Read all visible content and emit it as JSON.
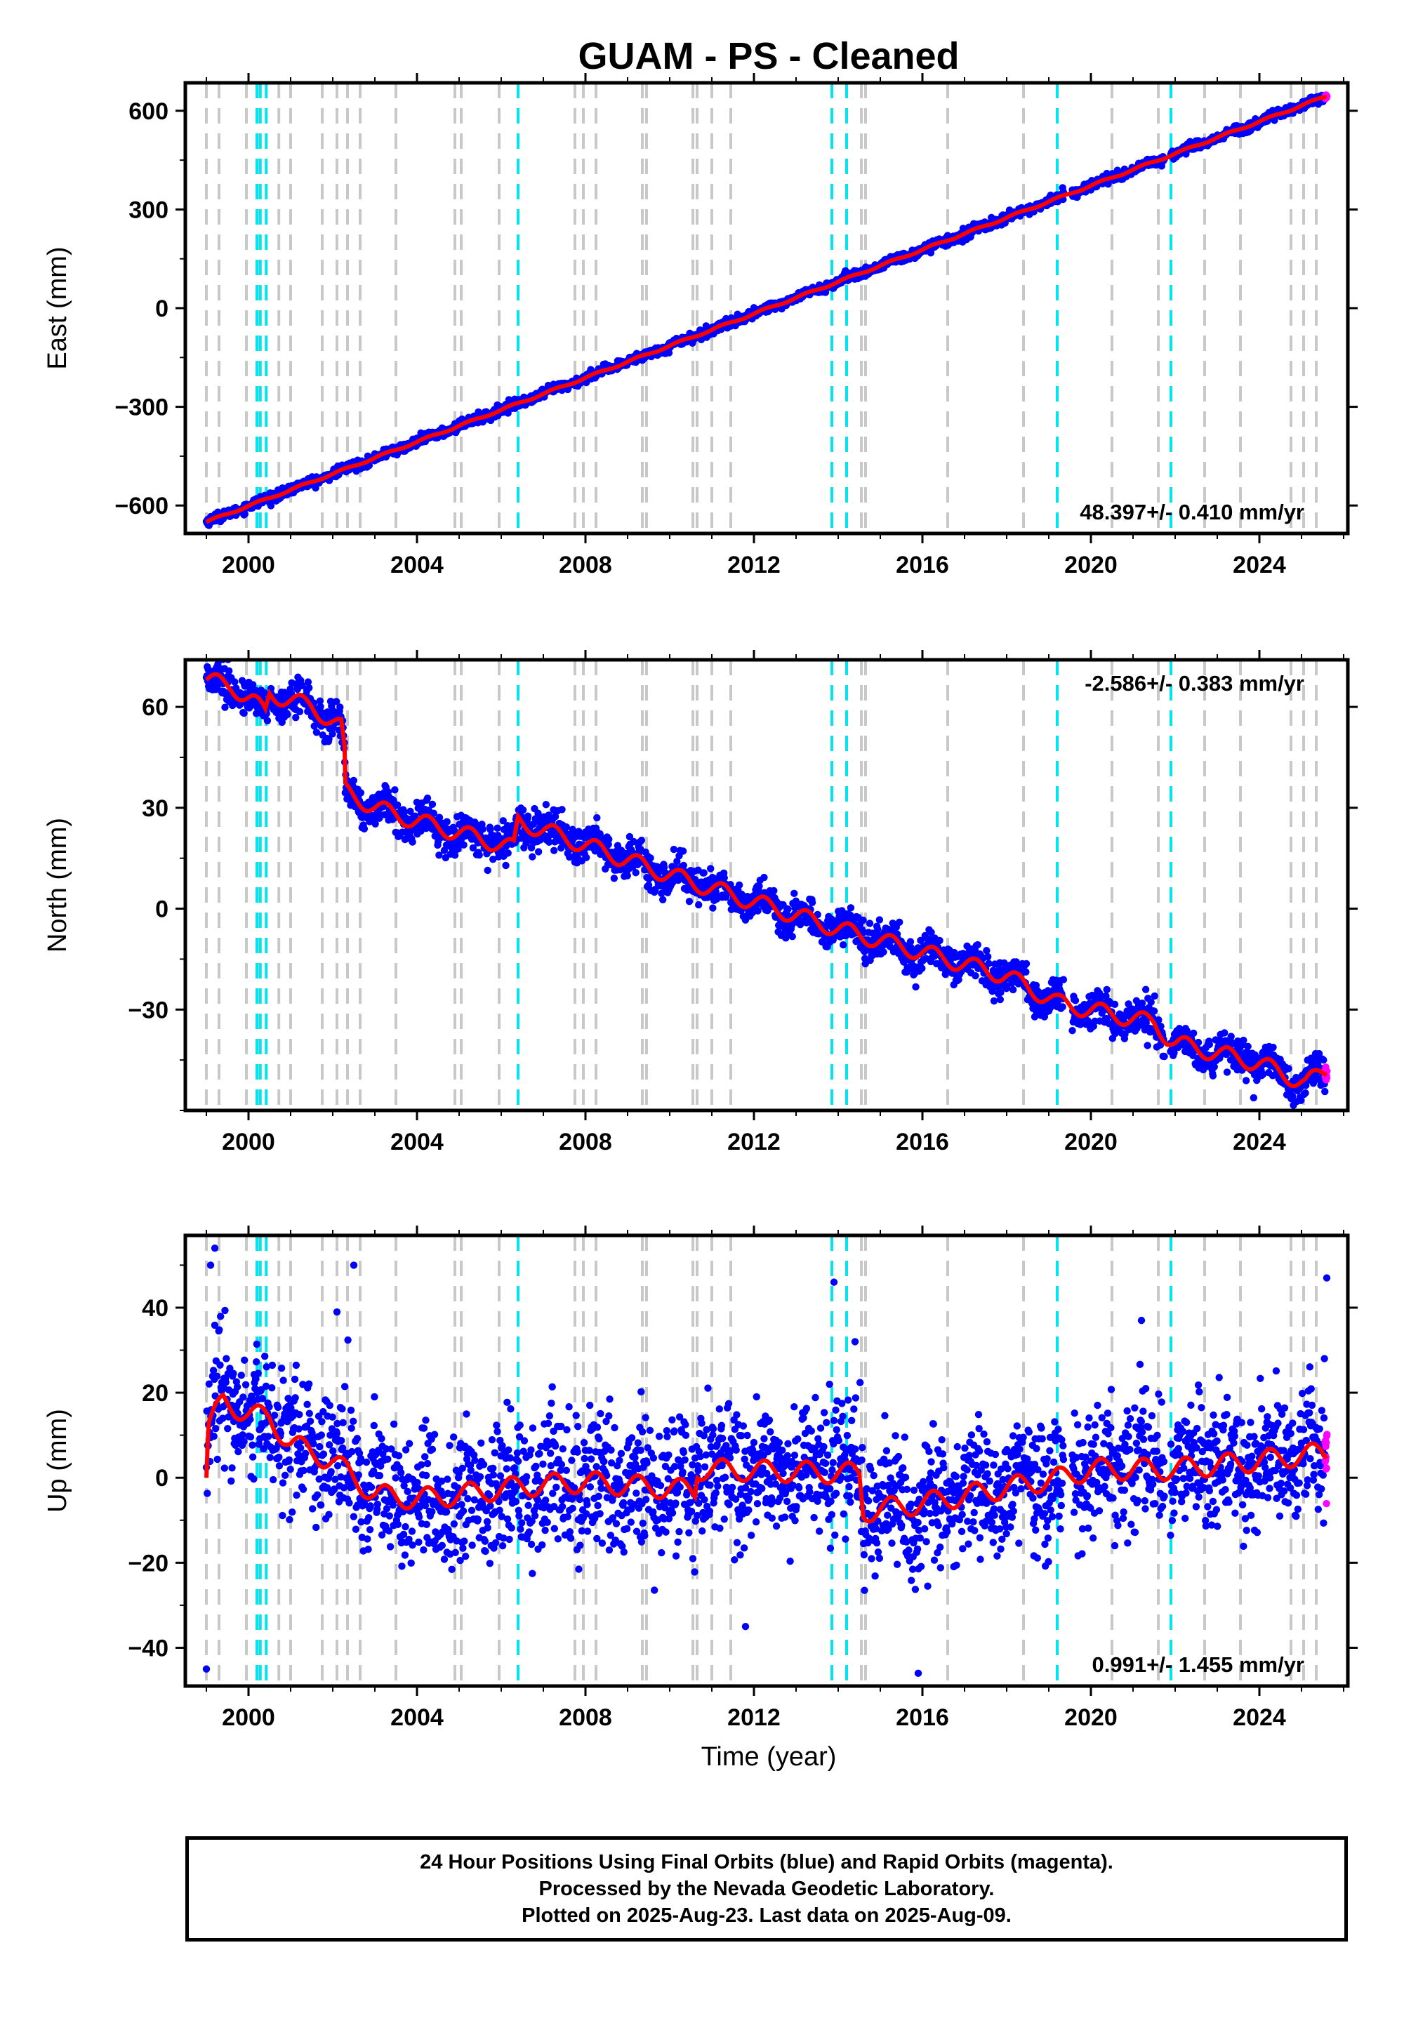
{
  "title": "GUAM  - PS - Cleaned",
  "xlabel": "Time (year)",
  "colors": {
    "final_points": "#0000ff",
    "rapid_points": "#ff00ff",
    "model_line": "#ff0000",
    "equipment_change": "#c8c8c8",
    "earthquake": "#00e5ee"
  },
  "footer": {
    "line1": "24 Hour Positions Using Final Orbits (blue) and Rapid Orbits (magenta).",
    "line2": "Processed by the Nevada Geodetic Laboratory.",
    "line3": "Plotted on 2025-Aug-23. Last data on 2025-Aug-09."
  },
  "chart_data": [
    {
      "type": "scatter",
      "component": "east",
      "ylabel": "East (mm)",
      "xlim": [
        1998.5,
        2026.1
      ],
      "ylim": [
        -685,
        685
      ],
      "yticks": [
        -600,
        -300,
        0,
        300,
        600
      ],
      "xticks": [
        2000,
        2004,
        2008,
        2012,
        2016,
        2020,
        2024
      ],
      "rate_label": "48.397+/- 0.410 mm/yr",
      "rate_position": "bottom-right",
      "start": [
        1999.0,
        -650
      ],
      "end": [
        2025.6,
        645
      ],
      "noise": 7,
      "seasonal_amplitude": 3
    },
    {
      "type": "scatter",
      "component": "north",
      "ylabel": "North (mm)",
      "xlim": [
        1998.5,
        2026.1
      ],
      "ylim": [
        -60,
        74
      ],
      "yticks": [
        -30,
        0,
        30,
        60
      ],
      "xticks": [
        2000,
        2004,
        2008,
        2012,
        2016,
        2020,
        2024
      ],
      "rate_label": "-2.586+/- 0.383 mm/yr",
      "rate_position": "top-right",
      "model_knots": [
        [
          1999.0,
          68
        ],
        [
          1999.6,
          66
        ],
        [
          2000.1,
          62
        ],
        [
          2000.4,
          58
        ],
        [
          2000.5,
          64
        ],
        [
          2001.5,
          60
        ],
        [
          2002.2,
          54
        ],
        [
          2002.28,
          46
        ],
        [
          2002.3,
          35
        ],
        [
          2003.0,
          30
        ],
        [
          2004.0,
          26
        ],
        [
          2006.3,
          18
        ],
        [
          2006.4,
          26
        ],
        [
          2010.0,
          10
        ],
        [
          2014.0,
          -6
        ],
        [
          2018.0,
          -20
        ],
        [
          2019.2,
          -28
        ],
        [
          2021.5,
          -34
        ],
        [
          2021.8,
          -38
        ],
        [
          2022.0,
          -40
        ],
        [
          2024.0,
          -46
        ],
        [
          2025.1,
          -52
        ],
        [
          2025.6,
          -48
        ]
      ],
      "noise": 2.6,
      "seasonal_amplitude": 2.5
    },
    {
      "type": "scatter",
      "component": "up",
      "ylabel": "Up (mm)",
      "xlim": [
        1998.5,
        2026.1
      ],
      "ylim": [
        -49,
        57
      ],
      "yticks": [
        -40,
        -20,
        0,
        20,
        40
      ],
      "xticks": [
        2000,
        2004,
        2008,
        2012,
        2016,
        2020,
        2024
      ],
      "rate_label": "0.991+/- 1.455 mm/yr",
      "rate_position": "bottom-right",
      "model_knots": [
        [
          1999.0,
          0
        ],
        [
          1999.05,
          12
        ],
        [
          1999.4,
          18
        ],
        [
          2000.0,
          15
        ],
        [
          2000.5,
          14
        ],
        [
          2001.0,
          8
        ],
        [
          2002.0,
          4
        ],
        [
          2002.5,
          0
        ],
        [
          2003.0,
          -4
        ],
        [
          2004.0,
          -5
        ],
        [
          2005.0,
          -4
        ],
        [
          2006.5,
          -2
        ],
        [
          2008.0,
          -1
        ],
        [
          2010.6,
          -3
        ],
        [
          2010.65,
          2
        ],
        [
          2014.5,
          1
        ],
        [
          2014.6,
          -8
        ],
        [
          2016.0,
          -6
        ],
        [
          2019.3,
          0
        ],
        [
          2020.0,
          2
        ],
        [
          2022.0,
          2
        ],
        [
          2024.0,
          4
        ],
        [
          2025.6,
          6
        ]
      ],
      "noise": 7.5,
      "seasonal_amplitude": 2.5,
      "outliers": [
        [
          1999.2,
          54
        ],
        [
          1999.1,
          50
        ],
        [
          2002.5,
          50
        ],
        [
          2002.1,
          39
        ],
        [
          2013.9,
          46
        ],
        [
          2014.4,
          32
        ],
        [
          2021.2,
          37
        ],
        [
          2025.6,
          47
        ],
        [
          1999.0,
          -45
        ],
        [
          2015.9,
          -46
        ],
        [
          2011.8,
          -35
        ]
      ]
    }
  ],
  "event_lines": {
    "equipment_change": [
      1999.0,
      1999.3,
      1999.95,
      2000.22,
      2000.72,
      2001.0,
      2001.75,
      2002.1,
      2002.35,
      2002.65,
      2003.5,
      2004.9,
      2005.05,
      2005.95,
      2007.75,
      2007.95,
      2008.25,
      2009.35,
      2009.45,
      2010.55,
      2010.65,
      2011.0,
      2011.45,
      2014.55,
      2014.65,
      2016.6,
      2018.4,
      2020.5,
      2021.6,
      2022.7,
      2023.55,
      2024.75,
      2025.05,
      2025.35
    ],
    "earthquake": [
      2000.2,
      2000.28,
      2000.42,
      2006.4,
      2013.85,
      2014.2,
      2019.2,
      2021.9
    ]
  }
}
